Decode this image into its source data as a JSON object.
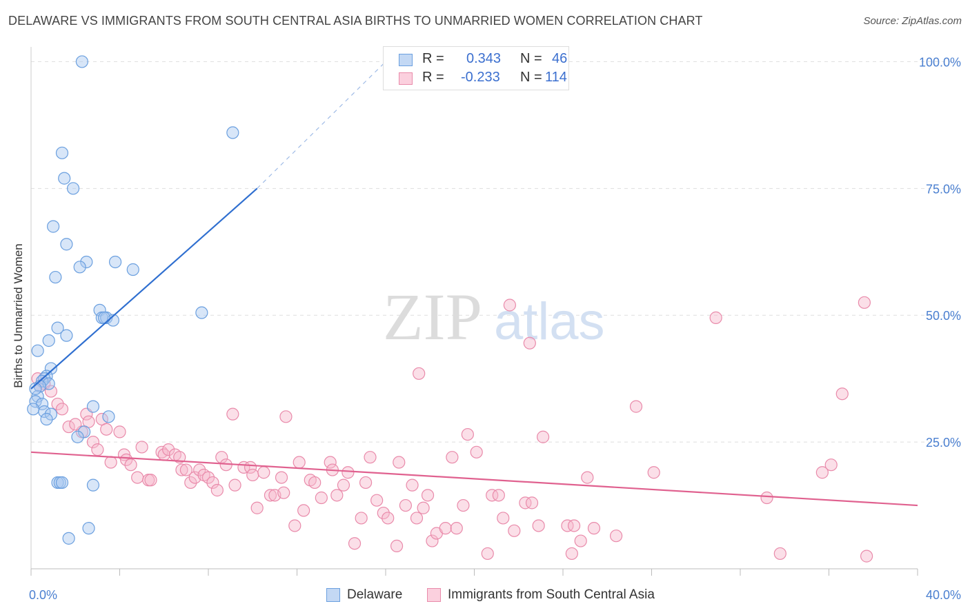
{
  "header": {
    "title": "DELAWARE VS IMMIGRANTS FROM SOUTH CENTRAL ASIA BIRTHS TO UNMARRIED WOMEN CORRELATION CHART",
    "source": "Source: ZipAtlas.com"
  },
  "watermark": {
    "zip": "ZIP",
    "atlas": "atlas"
  },
  "legend": {
    "rows": [
      {
        "r_label": "R =",
        "r_value": "0.343",
        "n_label": "N =",
        "n_value": "46"
      },
      {
        "r_label": "R =",
        "r_value": "-0.233",
        "n_label": "N =",
        "n_value": "114"
      }
    ]
  },
  "bottom_legend": {
    "items": [
      "Delaware",
      "Immigrants from South Central Asia"
    ]
  },
  "colors": {
    "blue_fill": "#a8c8f0",
    "blue_stroke": "#6a9fdf",
    "blue_line": "#2f6fd0",
    "pink_fill": "#f7b9cd",
    "pink_stroke": "#e98aaa",
    "pink_line": "#e0618f",
    "tick": "#4a7fd0",
    "grid": "#dddddd"
  },
  "chart_data": {
    "type": "scatter",
    "title": "DELAWARE VS IMMIGRANTS FROM SOUTH CENTRAL ASIA BIRTHS TO UNMARRIED WOMEN CORRELATION CHART",
    "xlabel": "",
    "ylabel": "Births to Unmarried Women",
    "xlim": [
      0,
      40
    ],
    "ylim": [
      0,
      104
    ],
    "x_tick_labels": [
      "0.0%",
      "40.0%"
    ],
    "y_ticks": [
      25,
      50,
      75,
      100
    ],
    "y_tick_labels": [
      "25.0%",
      "50.0%",
      "75.0%",
      "100.0%"
    ],
    "grid": true,
    "legend_placement": "top-center",
    "series": [
      {
        "name": "Delaware",
        "color": "#a8c8f0",
        "points": [
          [
            2.3,
            100.0
          ],
          [
            9.1,
            86.0
          ],
          [
            1.4,
            82.0
          ],
          [
            1.5,
            77.0
          ],
          [
            1.9,
            75.0
          ],
          [
            1.0,
            67.5
          ],
          [
            1.6,
            64.0
          ],
          [
            2.5,
            60.5
          ],
          [
            3.8,
            60.5
          ],
          [
            2.2,
            59.5
          ],
          [
            4.6,
            59.0
          ],
          [
            1.1,
            57.5
          ],
          [
            7.7,
            50.5
          ],
          [
            3.1,
            51.0
          ],
          [
            3.2,
            49.5
          ],
          [
            3.4,
            49.5
          ],
          [
            3.7,
            49.0
          ],
          [
            3.3,
            49.5
          ],
          [
            1.2,
            47.5
          ],
          [
            1.6,
            46.0
          ],
          [
            0.8,
            45.0
          ],
          [
            0.3,
            43.0
          ],
          [
            0.9,
            39.5
          ],
          [
            0.7,
            38.0
          ],
          [
            0.6,
            37.5
          ],
          [
            0.5,
            37.0
          ],
          [
            0.8,
            36.5
          ],
          [
            0.4,
            36.0
          ],
          [
            0.3,
            34.0
          ],
          [
            0.2,
            33.0
          ],
          [
            0.5,
            32.5
          ],
          [
            0.1,
            31.5
          ],
          [
            0.6,
            31.0
          ],
          [
            0.9,
            30.5
          ],
          [
            2.8,
            32.0
          ],
          [
            3.5,
            30.0
          ],
          [
            0.7,
            29.5
          ],
          [
            2.4,
            27.0
          ],
          [
            2.1,
            26.0
          ],
          [
            1.2,
            17.0
          ],
          [
            1.3,
            17.0
          ],
          [
            1.4,
            17.0
          ],
          [
            2.8,
            16.5
          ],
          [
            2.6,
            8.0
          ],
          [
            1.7,
            6.0
          ],
          [
            0.2,
            35.5
          ]
        ]
      },
      {
        "name": "Immigrants from South Central Asia",
        "color": "#f7b9cd",
        "points": [
          [
            0.3,
            37.5
          ],
          [
            0.6,
            36.5
          ],
          [
            0.4,
            36.0
          ],
          [
            0.9,
            35.0
          ],
          [
            1.2,
            32.5
          ],
          [
            1.4,
            31.5
          ],
          [
            2.5,
            30.5
          ],
          [
            2.3,
            27.0
          ],
          [
            1.7,
            28.0
          ],
          [
            2.0,
            28.5
          ],
          [
            2.6,
            29.0
          ],
          [
            3.2,
            29.5
          ],
          [
            3.4,
            27.5
          ],
          [
            2.8,
            25.0
          ],
          [
            3.0,
            23.5
          ],
          [
            4.0,
            27.0
          ],
          [
            4.2,
            22.5
          ],
          [
            4.3,
            21.5
          ],
          [
            3.6,
            21.0
          ],
          [
            4.5,
            20.5
          ],
          [
            4.8,
            18.0
          ],
          [
            5.0,
            24.0
          ],
          [
            5.3,
            17.5
          ],
          [
            5.4,
            17.5
          ],
          [
            5.9,
            23.0
          ],
          [
            6.0,
            22.5
          ],
          [
            6.2,
            23.5
          ],
          [
            6.5,
            22.5
          ],
          [
            6.7,
            22.0
          ],
          [
            6.8,
            19.5
          ],
          [
            7.0,
            19.5
          ],
          [
            7.2,
            17.0
          ],
          [
            7.4,
            18.0
          ],
          [
            7.6,
            19.5
          ],
          [
            7.8,
            18.5
          ],
          [
            8.0,
            18.0
          ],
          [
            8.2,
            17.0
          ],
          [
            8.4,
            15.5
          ],
          [
            8.6,
            22.0
          ],
          [
            8.8,
            20.5
          ],
          [
            9.1,
            30.5
          ],
          [
            9.2,
            16.5
          ],
          [
            9.6,
            20.0
          ],
          [
            9.9,
            20.0
          ],
          [
            10.0,
            18.5
          ],
          [
            10.2,
            12.0
          ],
          [
            10.5,
            19.0
          ],
          [
            10.8,
            14.5
          ],
          [
            11.0,
            14.5
          ],
          [
            11.3,
            18.0
          ],
          [
            11.4,
            15.0
          ],
          [
            11.5,
            30.0
          ],
          [
            11.9,
            8.5
          ],
          [
            12.1,
            21.0
          ],
          [
            12.3,
            11.5
          ],
          [
            12.6,
            17.5
          ],
          [
            12.8,
            17.0
          ],
          [
            13.1,
            14.0
          ],
          [
            13.5,
            21.0
          ],
          [
            13.6,
            19.5
          ],
          [
            13.8,
            14.5
          ],
          [
            14.1,
            16.5
          ],
          [
            14.3,
            19.0
          ],
          [
            14.6,
            5.0
          ],
          [
            14.9,
            10.0
          ],
          [
            15.1,
            17.0
          ],
          [
            15.3,
            22.0
          ],
          [
            15.6,
            13.5
          ],
          [
            15.9,
            11.0
          ],
          [
            16.1,
            10.0
          ],
          [
            16.5,
            4.5
          ],
          [
            16.6,
            21.0
          ],
          [
            16.9,
            12.5
          ],
          [
            17.2,
            16.5
          ],
          [
            17.4,
            10.0
          ],
          [
            17.5,
            38.5
          ],
          [
            17.7,
            12.0
          ],
          [
            17.9,
            14.5
          ],
          [
            18.1,
            5.5
          ],
          [
            18.3,
            7.0
          ],
          [
            18.7,
            8.0
          ],
          [
            19.0,
            22.0
          ],
          [
            19.2,
            8.0
          ],
          [
            19.5,
            12.5
          ],
          [
            19.7,
            26.5
          ],
          [
            20.1,
            23.0
          ],
          [
            20.6,
            3.0
          ],
          [
            20.8,
            14.5
          ],
          [
            21.1,
            14.5
          ],
          [
            21.3,
            10.0
          ],
          [
            21.6,
            52.0
          ],
          [
            21.8,
            7.5
          ],
          [
            22.3,
            13.0
          ],
          [
            22.6,
            13.0
          ],
          [
            22.5,
            44.5
          ],
          [
            22.9,
            8.5
          ],
          [
            23.1,
            26.0
          ],
          [
            24.2,
            8.5
          ],
          [
            24.4,
            3.0
          ],
          [
            24.5,
            8.5
          ],
          [
            24.8,
            5.5
          ],
          [
            25.1,
            18.0
          ],
          [
            25.4,
            8.0
          ],
          [
            26.4,
            6.5
          ],
          [
            27.3,
            32.0
          ],
          [
            28.1,
            19.0
          ],
          [
            30.9,
            49.5
          ],
          [
            33.8,
            3.0
          ],
          [
            35.7,
            19.0
          ],
          [
            36.1,
            20.5
          ],
          [
            36.6,
            34.5
          ],
          [
            37.6,
            52.5
          ],
          [
            37.7,
            2.5
          ],
          [
            33.2,
            14.0
          ]
        ]
      }
    ],
    "trendlines": [
      {
        "series": "Delaware",
        "x0": 0.0,
        "y0": 35.5,
        "x1": 10.2,
        "y1": 75.0,
        "dashed_to": [
          16.0,
          100.0
        ]
      },
      {
        "series": "Immigrants from South Central Asia",
        "x0": 0.0,
        "y0": 23.0,
        "x1": 40.0,
        "y1": 12.5
      }
    ]
  }
}
